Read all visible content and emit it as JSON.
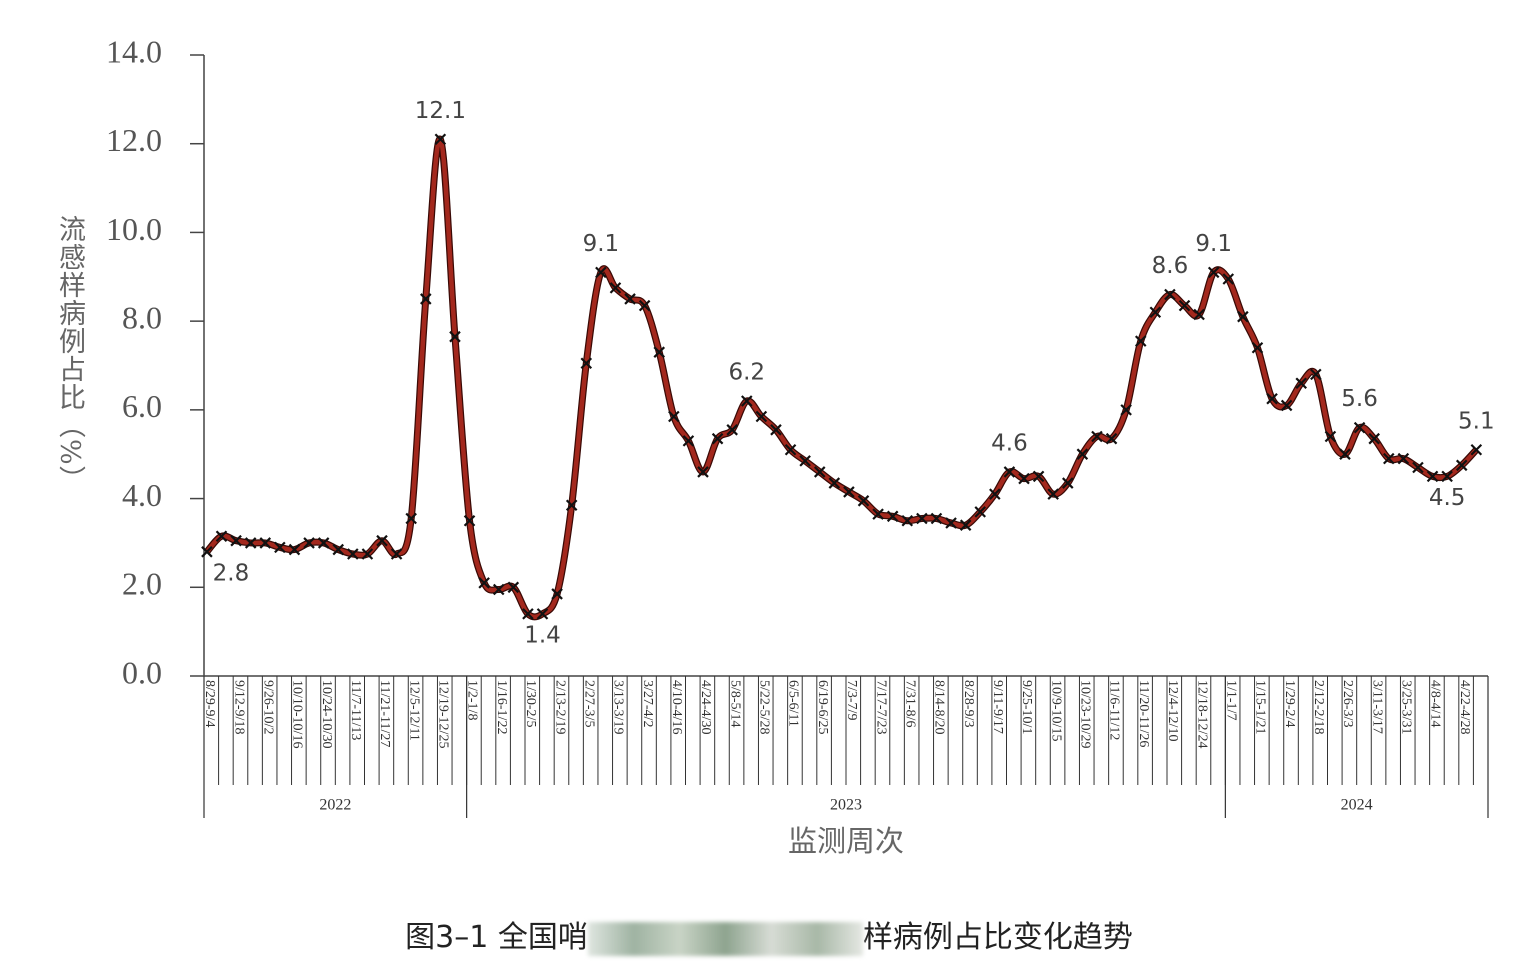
{
  "chart_data": {
    "type": "line",
    "y_label": "流感样病例占比（%）",
    "x_label": "监测周次",
    "ylim": [
      0,
      14
    ],
    "yticks": [
      {
        "value": 0,
        "label": "0.0"
      },
      {
        "value": 2,
        "label": "2.0"
      },
      {
        "value": 4,
        "label": "4.0"
      },
      {
        "value": 6,
        "label": "6.0"
      },
      {
        "value": 8,
        "label": "8.0"
      },
      {
        "value": 10,
        "label": "10.0"
      },
      {
        "value": 12,
        "label": "12.0"
      },
      {
        "value": 14,
        "label": "14.0"
      }
    ],
    "groups": [
      {
        "name": "2022",
        "categories": [
          "8/29-9/4",
          null,
          "9/12-9/18",
          null,
          "9/26-10/2",
          null,
          "10/10-10/16",
          null,
          "10/24-10/30",
          null,
          "11/7-11/13",
          null,
          "11/21-11/27",
          null,
          "12/5-12/11",
          null,
          "12/19-12/25",
          null
        ]
      },
      {
        "name": "2023",
        "categories": [
          "1/2-1/8",
          null,
          "1/16-1/22",
          null,
          "1/30-2/5",
          null,
          "2/13-2/19",
          null,
          "2/27-3/5",
          null,
          "3/13-3/19",
          null,
          "3/27-4/2",
          null,
          "4/10-4/16",
          null,
          "4/24-4/30",
          null,
          "5/8-5/14",
          null,
          "5/22-5/28",
          null,
          "6/5-6/11",
          null,
          "6/19-6/25",
          null,
          "7/3-7/9",
          null,
          "7/17-7/23",
          null,
          "7/31-8/6",
          null,
          "8/14-8/20",
          null,
          "8/28-9/3",
          null,
          "9/11-9/17",
          null,
          "9/25-10/1",
          null,
          "10/9-10/15",
          null,
          "10/23-10/29",
          null,
          "11/6-11/12",
          null,
          "11/20-11/26",
          null,
          "12/4-12/10",
          null,
          "12/18-12/24",
          null
        ]
      },
      {
        "name": "2024",
        "categories": [
          "1/1-1/7",
          null,
          "1/15-1/21",
          null,
          "1/29-2/4",
          null,
          "2/12-2/18",
          null,
          "2/26-3/3",
          null,
          "3/11-3/17",
          null,
          "3/25-3/31",
          null,
          "4/8-4/14",
          null,
          "4/22-4/28",
          null
        ]
      }
    ],
    "series": [
      {
        "color": "#a3281d",
        "values": [
          2.8,
          3.15,
          3.05,
          3.0,
          3.0,
          2.9,
          2.85,
          3.0,
          3.0,
          2.85,
          2.75,
          2.75,
          3.05,
          2.75,
          3.55,
          8.5,
          12.1,
          7.65,
          3.5,
          2.1,
          1.95,
          2.0,
          1.4,
          1.4,
          1.85,
          3.85,
          7.05,
          9.1,
          8.75,
          8.5,
          8.35,
          7.3,
          5.85,
          5.3,
          4.6,
          5.35,
          5.55,
          6.2,
          5.85,
          5.55,
          5.1,
          4.85,
          4.6,
          4.35,
          4.15,
          3.95,
          3.65,
          3.6,
          3.5,
          3.55,
          3.55,
          3.45,
          3.4,
          3.7,
          4.1,
          4.6,
          4.45,
          4.5,
          4.1,
          4.35,
          5.0,
          5.4,
          5.35,
          6.0,
          7.55,
          8.2,
          8.6,
          8.35,
          8.15,
          9.1,
          8.95,
          8.1,
          7.4,
          6.25,
          6.1,
          6.6,
          6.8,
          5.4,
          5.0,
          5.6,
          5.35,
          4.9,
          4.9,
          4.7,
          4.5,
          4.5,
          4.75,
          5.1
        ],
        "value_labels": [
          "2.8",
          null,
          null,
          null,
          null,
          null,
          null,
          null,
          null,
          null,
          null,
          null,
          null,
          null,
          null,
          null,
          "12.1",
          null,
          null,
          null,
          null,
          null,
          null,
          "1.4",
          null,
          null,
          null,
          "9.1",
          null,
          null,
          null,
          null,
          null,
          null,
          null,
          null,
          null,
          "6.2",
          null,
          null,
          null,
          null,
          null,
          null,
          null,
          null,
          null,
          null,
          null,
          null,
          null,
          null,
          null,
          null,
          null,
          "4.6",
          null,
          null,
          null,
          null,
          null,
          null,
          null,
          null,
          null,
          null,
          "8.6",
          null,
          null,
          "9.1",
          null,
          null,
          null,
          null,
          null,
          null,
          null,
          null,
          null,
          "5.6",
          null,
          null,
          null,
          null,
          null,
          "4.5",
          null,
          "5.1"
        ]
      }
    ]
  },
  "caption": {
    "start": "图3–1 全国哨",
    "end": "样病例占比变化趋势"
  }
}
